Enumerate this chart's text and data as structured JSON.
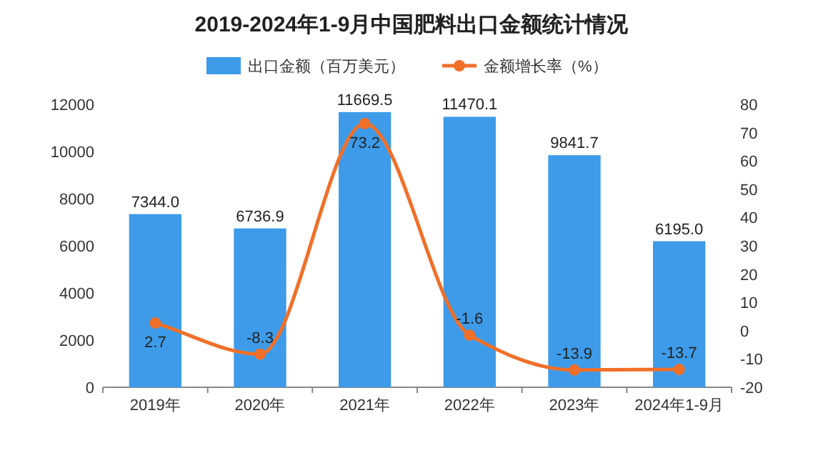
{
  "chart_data": {
    "type": "bar",
    "title": "2019-2024年1-9月中国肥料出口金额统计情况",
    "categories": [
      "2019年",
      "2020年",
      "2021年",
      "2022年",
      "2023年",
      "2024年1-9月"
    ],
    "series": [
      {
        "name": "出口金额（百万美元）",
        "color": "#3d9be9",
        "values": [
          7344.0,
          6736.9,
          11669.5,
          11470.1,
          9841.7,
          6195.0
        ],
        "value_labels": [
          "7344.0",
          "6736.9",
          "11669.5",
          "11470.1",
          "9841.7",
          "6195.0"
        ]
      },
      {
        "name": "金额增长率（%）",
        "type": "line",
        "axis": "y2",
        "color": "#f0702a",
        "values": [
          2.7,
          -8.3,
          73.2,
          -1.6,
          -13.9,
          -13.7
        ],
        "value_labels": [
          "2.7",
          "-8.3",
          "73.2",
          "-1.6",
          "-13.9",
          "-13.7"
        ]
      }
    ],
    "ylim": [
      0,
      12000
    ],
    "yticks": [
      0,
      2000,
      4000,
      6000,
      8000,
      10000,
      12000
    ],
    "y2lim": [
      -20,
      80
    ],
    "y2ticks": [
      -20,
      -10,
      0,
      10,
      20,
      30,
      40,
      50,
      60,
      70,
      80
    ],
    "legend": "top",
    "marker": "circle",
    "line_style": "solid"
  }
}
